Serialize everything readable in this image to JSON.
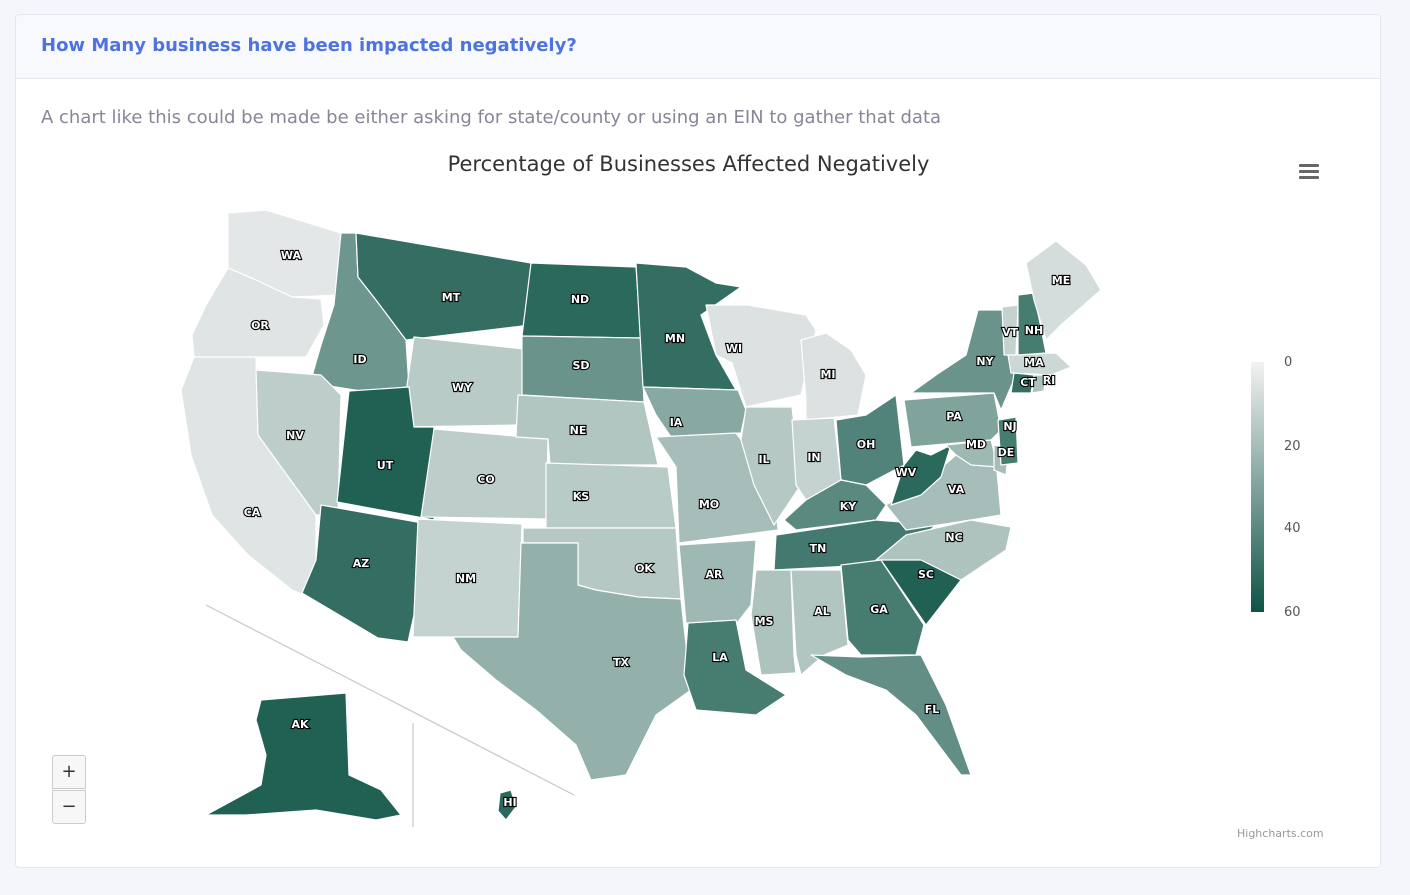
{
  "card": {
    "title": "How Many business have been impacted negatively?",
    "description": "A chart like this could be made be either asking for state/county or using an EIN to gather that data"
  },
  "chart_data": {
    "type": "choropleth",
    "title": "Percentage of Businesses Affected Negatively",
    "color_axis": {
      "min": 0,
      "max": 60,
      "ticks": [
        0,
        20,
        40,
        60
      ],
      "min_color": "#f2f2f2",
      "max_color": "#0e5446",
      "legend_position": "right"
    },
    "states": [
      {
        "code": "WA",
        "value": 4
      },
      {
        "code": "OR",
        "value": 5
      },
      {
        "code": "CA",
        "value": 5
      },
      {
        "code": "ID",
        "value": 35
      },
      {
        "code": "NV",
        "value": 14
      },
      {
        "code": "MT",
        "value": 50
      },
      {
        "code": "WY",
        "value": 15
      },
      {
        "code": "UT",
        "value": 55
      },
      {
        "code": "AZ",
        "value": 50
      },
      {
        "code": "CO",
        "value": 14
      },
      {
        "code": "NM",
        "value": 12
      },
      {
        "code": "ND",
        "value": 52
      },
      {
        "code": "SD",
        "value": 36
      },
      {
        "code": "NE",
        "value": 17
      },
      {
        "code": "KS",
        "value": 15
      },
      {
        "code": "OK",
        "value": 16
      },
      {
        "code": "TX",
        "value": 25
      },
      {
        "code": "MN",
        "value": 50
      },
      {
        "code": "IA",
        "value": 28
      },
      {
        "code": "MO",
        "value": 20
      },
      {
        "code": "AR",
        "value": 22
      },
      {
        "code": "LA",
        "value": 45
      },
      {
        "code": "WI",
        "value": 6
      },
      {
        "code": "IL",
        "value": 16
      },
      {
        "code": "MI",
        "value": 6
      },
      {
        "code": "IN",
        "value": 12
      },
      {
        "code": "OH",
        "value": 42
      },
      {
        "code": "KY",
        "value": 40
      },
      {
        "code": "TN",
        "value": 46
      },
      {
        "code": "MS",
        "value": 18
      },
      {
        "code": "AL",
        "value": 17
      },
      {
        "code": "GA",
        "value": 45
      },
      {
        "code": "FL",
        "value": 38
      },
      {
        "code": "SC",
        "value": 55
      },
      {
        "code": "NC",
        "value": 18
      },
      {
        "code": "VA",
        "value": 20
      },
      {
        "code": "WV",
        "value": 52
      },
      {
        "code": "PA",
        "value": 30
      },
      {
        "code": "NY",
        "value": 36
      },
      {
        "code": "MD",
        "value": 22
      },
      {
        "code": "DE",
        "value": 20
      },
      {
        "code": "NJ",
        "value": 45
      },
      {
        "code": "CT",
        "value": 50
      },
      {
        "code": "RI",
        "value": 18
      },
      {
        "code": "MA",
        "value": 10
      },
      {
        "code": "VT",
        "value": 12
      },
      {
        "code": "NH",
        "value": 45
      },
      {
        "code": "ME",
        "value": 8
      },
      {
        "code": "AK",
        "value": 55
      },
      {
        "code": "HI",
        "value": 52
      }
    ]
  },
  "zoom": {
    "in_label": "+",
    "out_label": "−"
  },
  "credits": "Highcharts.com",
  "icons": {
    "menu": "hamburger-menu-icon"
  }
}
